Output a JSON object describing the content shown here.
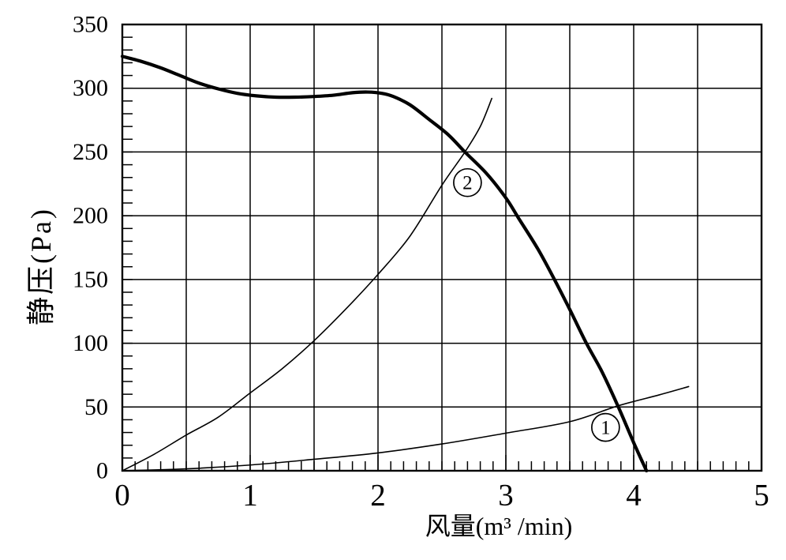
{
  "page": {
    "background": "#ffffff",
    "description_visible_text_only": true
  },
  "chart_data": {
    "type": "line",
    "title": "",
    "xlabel": "风量(m³ /min)",
    "ylabel": "静压(Pa)",
    "xlim": [
      0,
      5
    ],
    "ylim": [
      0,
      350
    ],
    "x_major_ticks": [
      0,
      1,
      2,
      3,
      4,
      5
    ],
    "x_tick_labels": [
      "0",
      "1",
      "2",
      "3",
      "4",
      "5"
    ],
    "y_major_ticks": [
      0,
      50,
      100,
      150,
      200,
      250,
      300,
      350
    ],
    "y_tick_labels": [
      "0",
      "50",
      "100",
      "150",
      "200",
      "250",
      "300",
      "350"
    ],
    "x_grid_step": 0.5,
    "y_grid_step": 50,
    "x_minor_tick_step": 0.1,
    "y_minor_tick_step": 10,
    "grid": true,
    "legend": "none",
    "axis_color": "#000000",
    "background_color": "#ffffff",
    "series": [
      {
        "name": "fan-static-pressure-curve",
        "line_width": 4.2,
        "color": "#000000",
        "points": [
          [
            0,
            325
          ],
          [
            0.15,
            321
          ],
          [
            0.3,
            316
          ],
          [
            0.45,
            310
          ],
          [
            0.6,
            304
          ],
          [
            0.75,
            299.5
          ],
          [
            0.9,
            296
          ],
          [
            1.05,
            294
          ],
          [
            1.2,
            293
          ],
          [
            1.35,
            293
          ],
          [
            1.5,
            293.5
          ],
          [
            1.65,
            294.5
          ],
          [
            1.8,
            296.5
          ],
          [
            1.92,
            297
          ],
          [
            2.03,
            296
          ],
          [
            2.12,
            293.5
          ],
          [
            2.25,
            287
          ],
          [
            2.4,
            275.5
          ],
          [
            2.55,
            263.5
          ],
          [
            2.68,
            250
          ],
          [
            2.85,
            233
          ],
          [
            3.0,
            214
          ],
          [
            3.1,
            198
          ],
          [
            3.25,
            174
          ],
          [
            3.38,
            150
          ],
          [
            3.5,
            126.5
          ],
          [
            3.63,
            100
          ],
          [
            3.75,
            78
          ],
          [
            3.88,
            50
          ],
          [
            4.0,
            22
          ],
          [
            4.1,
            0
          ]
        ]
      },
      {
        "name": "system-resistance-curve-2",
        "line_width": 1.6,
        "color": "#000000",
        "points": [
          [
            0,
            0
          ],
          [
            0.25,
            13
          ],
          [
            0.5,
            28
          ],
          [
            0.75,
            42
          ],
          [
            1,
            61
          ],
          [
            1.25,
            80
          ],
          [
            1.5,
            102
          ],
          [
            1.75,
            127
          ],
          [
            2,
            154
          ],
          [
            2.25,
            184
          ],
          [
            2.5,
            224
          ],
          [
            2.68,
            250
          ],
          [
            2.8,
            270
          ],
          [
            2.89,
            292
          ]
        ]
      },
      {
        "name": "system-resistance-curve-1",
        "line_width": 1.6,
        "color": "#000000",
        "points": [
          [
            0,
            0
          ],
          [
            0.5,
            1.5
          ],
          [
            1,
            4.5
          ],
          [
            1.5,
            9
          ],
          [
            2,
            14
          ],
          [
            2.5,
            21
          ],
          [
            3,
            29.5
          ],
          [
            3.5,
            38.5
          ],
          [
            3.88,
            51
          ],
          [
            4.2,
            59.5
          ],
          [
            4.43,
            66
          ]
        ]
      }
    ],
    "annotations": [
      {
        "label": "2",
        "shape": "circled",
        "series": "system-resistance-curve-2",
        "x": 2.7,
        "y": 226
      },
      {
        "label": "1",
        "shape": "circled",
        "series": "system-resistance-curve-1",
        "x": 3.78,
        "y": 34
      }
    ],
    "operating_points_visible": [
      {
        "curves": "fan-static-pressure-curve ∩ system-resistance-curve-2",
        "x": 2.68,
        "y": 250
      },
      {
        "curves": "fan-static-pressure-curve ∩ system-resistance-curve-1",
        "x": 3.88,
        "y": 51
      }
    ]
  }
}
